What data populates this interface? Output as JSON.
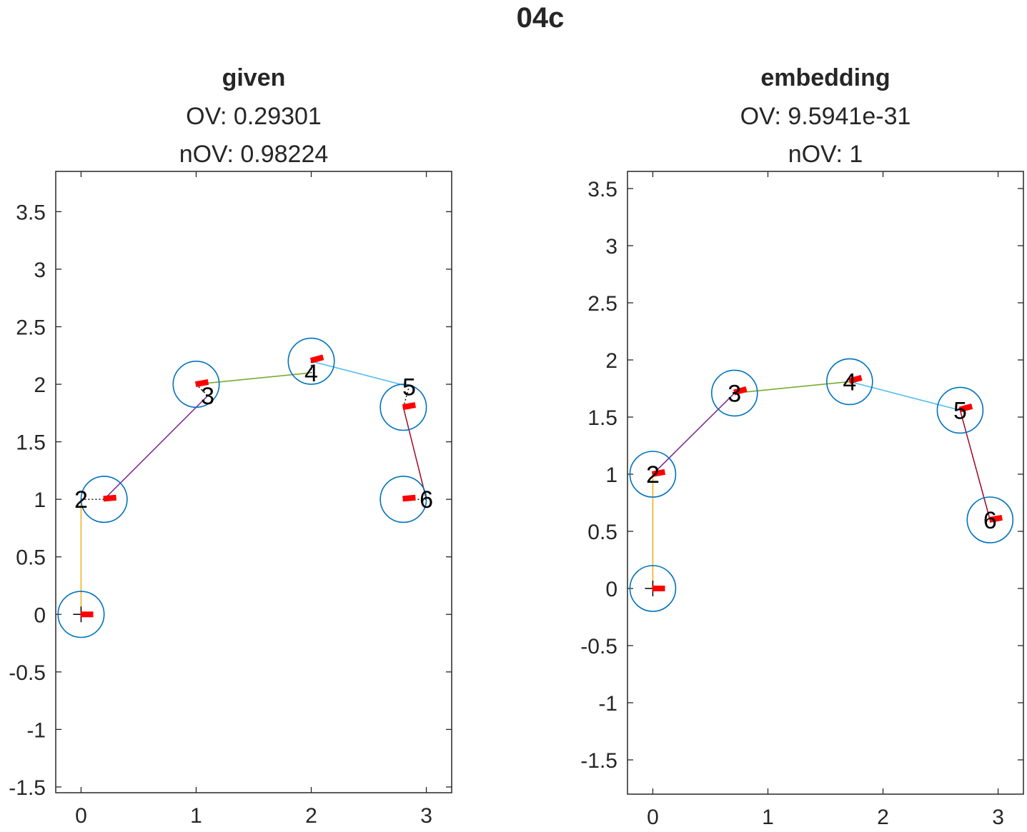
{
  "figure_title": "04c",
  "chart_data": [
    {
      "type": "scatter",
      "title": "given",
      "subtitle_lines": [
        "OV: 0.29301",
        "nOV: 0.98224"
      ],
      "xlabel": "",
      "ylabel": "",
      "xlim": [
        -0.22,
        3.22
      ],
      "ylim": [
        -1.55,
        3.85
      ],
      "xticks": [
        0,
        1,
        2,
        3
      ],
      "xtick_labels": [
        "0",
        "1",
        "2",
        "3"
      ],
      "yticks": [
        -1.5,
        -1,
        -0.5,
        0,
        0.5,
        1,
        1.5,
        2,
        2.5,
        3,
        3.5
      ],
      "ytick_labels": [
        "-1.5",
        "-1",
        "-0.5",
        "0",
        "0.5",
        "1",
        "1.5",
        "2",
        "2.5",
        "3",
        "3.5"
      ],
      "grid": false,
      "origin_marker": [
        0,
        0
      ],
      "circle_radius": 0.2,
      "nodes": [
        {
          "label": "",
          "label_pos": [
            0,
            0
          ],
          "circle": [
            0,
            0
          ],
          "marker": [
            0.05,
            0
          ],
          "marker_angle": 0
        },
        {
          "label": "2",
          "label_pos": [
            0,
            1
          ],
          "circle": [
            0.2,
            1
          ],
          "marker": [
            0.25,
            1.01
          ],
          "marker_angle": 5
        },
        {
          "label": "3",
          "label_pos": [
            1.1,
            1.9
          ],
          "circle": [
            1,
            2
          ],
          "marker": [
            1.05,
            2.01
          ],
          "marker_angle": 10
        },
        {
          "label": "4",
          "label_pos": [
            2,
            2.1
          ],
          "circle": [
            2,
            2.2
          ],
          "marker": [
            2.05,
            2.22
          ],
          "marker_angle": 15
        },
        {
          "label": "5",
          "label_pos": [
            2.85,
            1.98
          ],
          "circle": [
            2.8,
            1.8
          ],
          "marker": [
            2.85,
            1.81
          ],
          "marker_angle": 10
        },
        {
          "label": "6",
          "label_pos": [
            3,
            1
          ],
          "circle": [
            2.8,
            1
          ],
          "marker": [
            2.85,
            1.01
          ],
          "marker_angle": 5
        }
      ],
      "edges": [
        {
          "from": [
            0,
            0
          ],
          "to": [
            0,
            1
          ],
          "color": "#EDB120",
          "dashed": false
        },
        {
          "from": [
            0.2,
            1
          ],
          "to": [
            1.1,
            1.9
          ],
          "color": "#7E2F8E",
          "dashed": false
        },
        {
          "from": [
            1,
            2
          ],
          "to": [
            2,
            2.1
          ],
          "color": "#77AC30",
          "dashed": false
        },
        {
          "from": [
            2,
            2.2
          ],
          "to": [
            2.85,
            1.98
          ],
          "color": "#4DBEEE",
          "dashed": false
        },
        {
          "from": [
            2.8,
            1.8
          ],
          "to": [
            3,
            1
          ],
          "color": "#A2142F",
          "dashed": false
        },
        {
          "from": [
            0,
            1
          ],
          "to": [
            0.2,
            1
          ],
          "color": "#000000",
          "dashed": true
        },
        {
          "from": [
            1,
            2
          ],
          "to": [
            1.1,
            1.9
          ],
          "color": "#000000",
          "dashed": true
        },
        {
          "from": [
            2,
            2.2
          ],
          "to": [
            2,
            2.1
          ],
          "color": "#000000",
          "dashed": true
        },
        {
          "from": [
            2.8,
            1.8
          ],
          "to": [
            2.85,
            1.98
          ],
          "color": "#000000",
          "dashed": true
        },
        {
          "from": [
            2.8,
            1
          ],
          "to": [
            3,
            1
          ],
          "color": "#000000",
          "dashed": true
        }
      ]
    },
    {
      "type": "scatter",
      "title": "embedding",
      "subtitle_lines": [
        "OV: 9.5941e-31",
        "nOV: 1"
      ],
      "xlabel": "",
      "ylabel": "",
      "xlim": [
        -0.22,
        3.22
      ],
      "ylim": [
        -1.8,
        3.65
      ],
      "xticks": [
        0,
        1,
        2,
        3
      ],
      "xtick_labels": [
        "0",
        "1",
        "2",
        "3"
      ],
      "yticks": [
        -1.5,
        -1,
        -0.5,
        0,
        0.5,
        1,
        1.5,
        2,
        2.5,
        3,
        3.5
      ],
      "ytick_labels": [
        "-1.5",
        "-1",
        "-0.5",
        "0",
        "0.5",
        "1",
        "1.5",
        "2",
        "2.5",
        "3",
        "3.5"
      ],
      "grid": false,
      "origin_marker": [
        0,
        0
      ],
      "circle_radius": 0.2,
      "nodes": [
        {
          "label": "",
          "label_pos": [
            0,
            0
          ],
          "circle": [
            0,
            0
          ],
          "marker": [
            0.05,
            0
          ],
          "marker_angle": 0
        },
        {
          "label": "2",
          "label_pos": [
            0,
            1
          ],
          "circle": [
            0,
            1
          ],
          "marker": [
            0.05,
            1.01
          ],
          "marker_angle": 10
        },
        {
          "label": "3",
          "label_pos": [
            0.71,
            1.71
          ],
          "circle": [
            0.71,
            1.71
          ],
          "marker": [
            0.76,
            1.73
          ],
          "marker_angle": 15
        },
        {
          "label": "4",
          "label_pos": [
            1.71,
            1.81
          ],
          "circle": [
            1.71,
            1.81
          ],
          "marker": [
            1.76,
            1.83
          ],
          "marker_angle": 15
        },
        {
          "label": "5",
          "label_pos": [
            2.67,
            1.56
          ],
          "circle": [
            2.67,
            1.56
          ],
          "marker": [
            2.72,
            1.58
          ],
          "marker_angle": 15
        },
        {
          "label": "6",
          "label_pos": [
            2.93,
            0.6
          ],
          "circle": [
            2.93,
            0.6
          ],
          "marker": [
            2.98,
            0.61
          ],
          "marker_angle": 10
        }
      ],
      "edges": [
        {
          "from": [
            0,
            0
          ],
          "to": [
            0,
            1
          ],
          "color": "#EDB120",
          "dashed": false
        },
        {
          "from": [
            0,
            1
          ],
          "to": [
            0.71,
            1.71
          ],
          "color": "#7E2F8E",
          "dashed": false
        },
        {
          "from": [
            0.71,
            1.71
          ],
          "to": [
            1.71,
            1.81
          ],
          "color": "#77AC30",
          "dashed": false
        },
        {
          "from": [
            1.71,
            1.81
          ],
          "to": [
            2.67,
            1.56
          ],
          "color": "#4DBEEE",
          "dashed": false
        },
        {
          "from": [
            2.67,
            1.56
          ],
          "to": [
            2.93,
            0.6
          ],
          "color": "#A2142F",
          "dashed": false
        }
      ]
    }
  ],
  "colors": {
    "circle": "#0072BD",
    "marker": "#FF0000",
    "axis": "#262626"
  }
}
